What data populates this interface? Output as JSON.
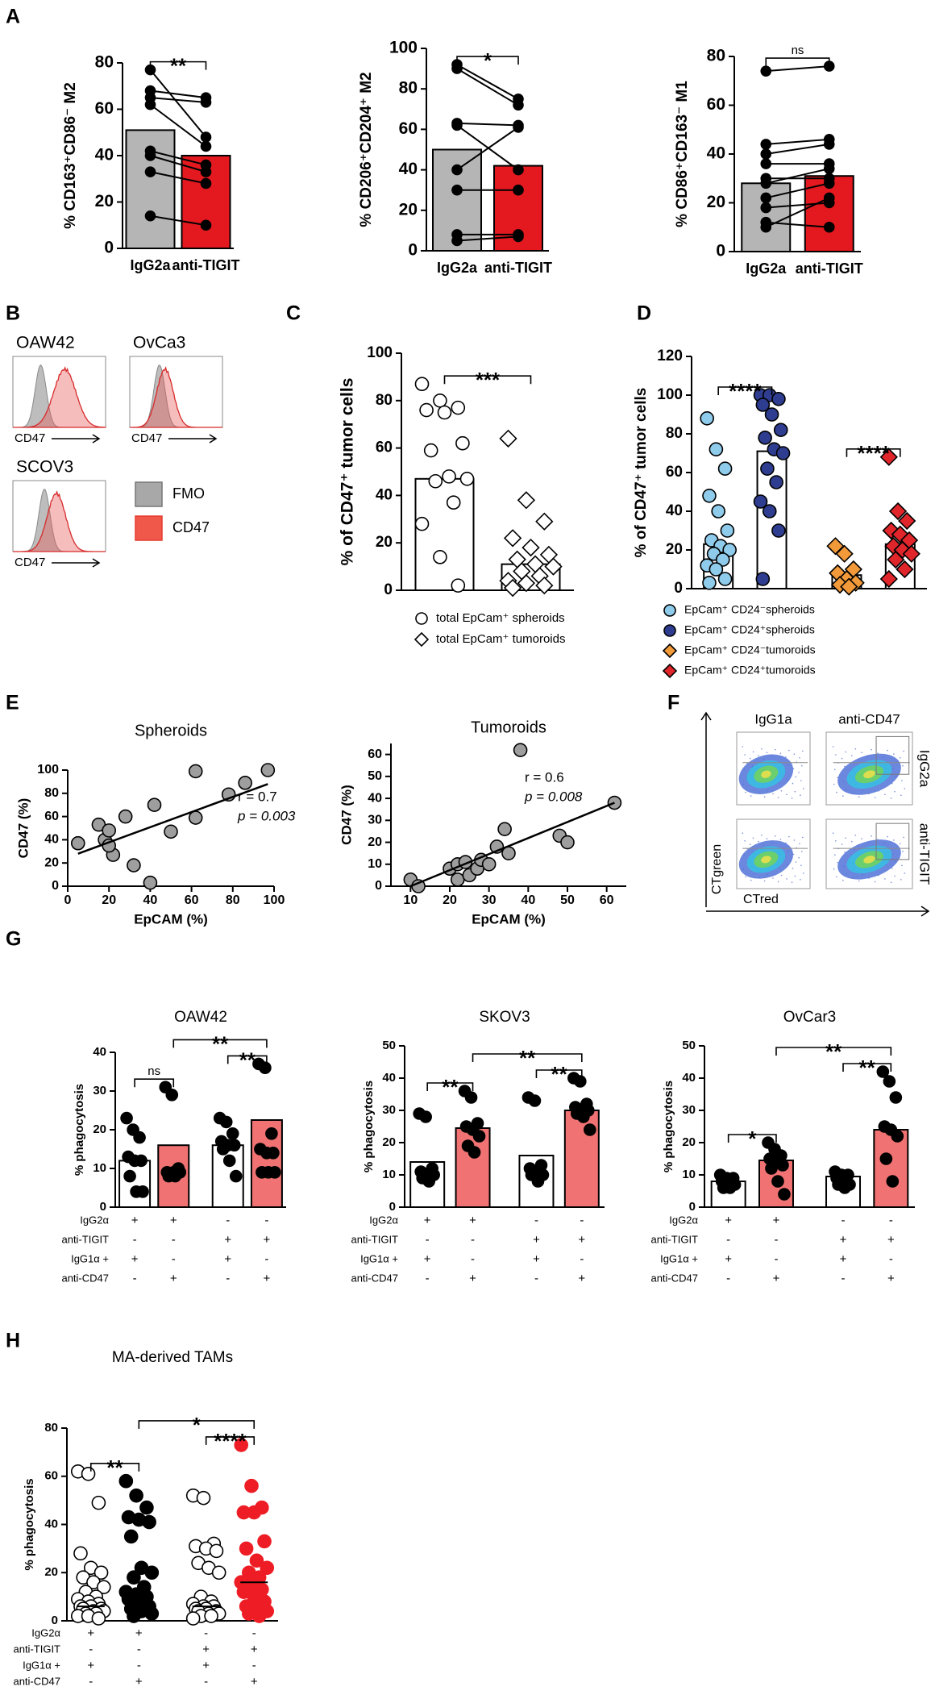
{
  "panel_labels": [
    "A",
    "B",
    "C",
    "D",
    "E",
    "F",
    "G",
    "H"
  ],
  "flow_histograms": {
    "titles": [
      "OAW42",
      "OvCa3",
      "SCOV3"
    ],
    "x_label": "CD47",
    "legend": [
      "FMO",
      "CD47"
    ]
  },
  "flow_plots": {
    "columns": [
      "IgG1a",
      "anti-CD47"
    ],
    "rows": [
      "IgG2a",
      "anti-TIGIT"
    ],
    "x_label": "CTred",
    "y_label": "CTgreen"
  },
  "chart_data": [
    {
      "type": "bar",
      "y_label": "% CD163⁺CD86⁻ M2",
      "ylim": [
        0,
        80
      ],
      "yticks": [
        0,
        20,
        40,
        60,
        80
      ],
      "paired": true,
      "series": [
        {
          "name": "IgG2a",
          "bar": 51,
          "bar_color": "#b5b5b5",
          "point_color": "#000000",
          "marker": "circle",
          "values": [
            77,
            68,
            65,
            62,
            42,
            40,
            33,
            14
          ]
        },
        {
          "name": "anti-TIGIT",
          "bar": 40,
          "bar_color": "#e3191f",
          "point_color": "#000000",
          "marker": "circle",
          "values": [
            48,
            65,
            63,
            44,
            36,
            33,
            28,
            10
          ]
        }
      ],
      "significance": [
        {
          "from": 0,
          "to": 1,
          "label": "**"
        }
      ]
    },
    {
      "type": "bar",
      "y_label": "% CD206⁺CD204⁺ M2",
      "ylim": [
        0,
        100
      ],
      "yticks": [
        0,
        20,
        40,
        60,
        80,
        100
      ],
      "paired": true,
      "series": [
        {
          "name": "IgG2a",
          "bar": 50,
          "bar_color": "#b5b5b5",
          "point_color": "#000000",
          "marker": "circle",
          "values": [
            92,
            90,
            63,
            62,
            40,
            30,
            8,
            5
          ]
        },
        {
          "name": "anti-TIGIT",
          "bar": 42,
          "bar_color": "#e3191f",
          "point_color": "#000000",
          "marker": "circle",
          "values": [
            75,
            72,
            62,
            40,
            61,
            30,
            8,
            7
          ]
        }
      ],
      "significance": [
        {
          "from": 0,
          "to": 1,
          "label": "*"
        }
      ]
    },
    {
      "type": "bar",
      "y_label": "% CD86⁺CD163⁻ M1",
      "ylim": [
        0,
        80
      ],
      "yticks": [
        0,
        20,
        40,
        60,
        80
      ],
      "paired": true,
      "series": [
        {
          "name": "IgG2a",
          "bar": 28,
          "bar_color": "#b5b5b5",
          "point_color": "#000000",
          "marker": "circle",
          "values": [
            74,
            44,
            40,
            36,
            30,
            28,
            22,
            18,
            12,
            10
          ]
        },
        {
          "name": "anti-TIGIT",
          "bar": 31,
          "bar_color": "#e3191f",
          "point_color": "#000000",
          "marker": "circle",
          "values": [
            76,
            46,
            44,
            36,
            30,
            34,
            28,
            20,
            10,
            22
          ]
        }
      ],
      "significance": [
        {
          "from": 0,
          "to": 1,
          "label": "ns"
        }
      ]
    },
    {
      "type": "bar",
      "y_label": "% of CD47⁺ tumor cells",
      "ylim": [
        0,
        100
      ],
      "yticks": [
        0,
        20,
        40,
        60,
        80,
        100
      ],
      "legend": true,
      "series": [
        {
          "name": "total EpCam⁺ spheroids",
          "bar": 47,
          "bar_color": "#ffffff",
          "point_color": "#ffffff",
          "marker": "circle",
          "values": [
            87,
            80,
            77,
            76,
            75,
            62,
            59,
            48,
            47,
            46,
            37,
            28,
            14,
            2
          ]
        },
        {
          "name": "total EpCam⁺ tumoroids",
          "bar": 11,
          "bar_color": "#ffffff",
          "point_color": "#ffffff",
          "marker": "diamond",
          "values": [
            64,
            38,
            29,
            22,
            18,
            15,
            13,
            11,
            10,
            8,
            6,
            4,
            3,
            2,
            1
          ]
        }
      ],
      "significance": [
        {
          "from": 0,
          "to": 1,
          "label": "***"
        }
      ]
    },
    {
      "type": "bar",
      "y_label": "% of CD47⁺ tumor cells",
      "ylim": [
        0,
        120
      ],
      "yticks": [
        0,
        20,
        40,
        60,
        80,
        100,
        120
      ],
      "legend": true,
      "series": [
        {
          "name": "EpCam⁺ CD24⁻spheroids",
          "bar": 23,
          "bar_color": "#ffffff",
          "point_color": "#8fcbea",
          "marker": "circle",
          "values": [
            88,
            72,
            62,
            48,
            40,
            30,
            25,
            22,
            20,
            18,
            15,
            12,
            10,
            5,
            3
          ]
        },
        {
          "name": "EpCam⁺ CD24⁺spheroids",
          "bar": 71,
          "bar_color": "#ffffff",
          "point_color": "#2e3d8f",
          "marker": "circle",
          "values": [
            100,
            100,
            98,
            95,
            90,
            82,
            78,
            72,
            70,
            62,
            55,
            45,
            40,
            30,
            5
          ]
        },
        {
          "name": "EpCam⁺ CD24⁻tumoroids",
          "bar": 7,
          "bar_color": "#ffffff",
          "point_color": "#f29a3a",
          "marker": "diamond",
          "values": [
            22,
            18,
            10,
            8,
            5,
            3,
            2,
            1
          ]
        },
        {
          "name": "EpCam⁺ CD24⁺tumoroids",
          "bar": 23,
          "bar_color": "#ffffff",
          "point_color": "#e0262b",
          "marker": "diamond",
          "values": [
            68,
            40,
            35,
            30,
            28,
            25,
            22,
            20,
            18,
            15,
            10,
            5
          ]
        }
      ],
      "significance": [
        {
          "from": 0,
          "to": 1,
          "label": "****"
        },
        {
          "from": 2,
          "to": 3,
          "label": "****"
        }
      ]
    },
    {
      "type": "scatter",
      "title": "Spheroids",
      "x_label": "EpCAM (%)",
      "y_label": "CD47 (%)",
      "color": "#9e9e9e",
      "xlim": [
        0,
        100
      ],
      "xticks": [
        0,
        20,
        40,
        60,
        80,
        100
      ],
      "ylim": [
        0,
        100
      ],
      "yticks": [
        0,
        20,
        40,
        60,
        80,
        100
      ],
      "x": [
        5,
        15,
        18,
        20,
        22,
        20,
        28,
        32,
        40,
        42,
        50,
        62,
        62,
        78,
        86,
        97
      ],
      "values": [
        37,
        53,
        40,
        48,
        27,
        35,
        60,
        18,
        3,
        70,
        47,
        99,
        59,
        79,
        89,
        100
      ],
      "fit": {
        "x": [
          5,
          97
        ],
        "y": [
          28,
          88
        ]
      },
      "annotations": [
        "r = 0.7",
        "p = 0.003"
      ]
    },
    {
      "type": "scatter",
      "title": "Tumoroids",
      "x_label": "EpCAM (%)",
      "y_label": "CD47 (%)",
      "color": "#9e9e9e",
      "xlim": [
        5,
        65
      ],
      "xticks": [
        10,
        20,
        30,
        40,
        50,
        60
      ],
      "ylim": [
        0,
        65
      ],
      "yticks": [
        0,
        10,
        20,
        30,
        40,
        50,
        60
      ],
      "x": [
        10,
        12,
        20,
        22,
        22,
        24,
        25,
        27,
        28,
        30,
        32,
        34,
        35,
        38,
        48,
        50,
        62
      ],
      "values": [
        3,
        0,
        8,
        10,
        3,
        11,
        5,
        8,
        12,
        10,
        18,
        26,
        15,
        62,
        23,
        20,
        38
      ],
      "fit": {
        "x": [
          10,
          62
        ],
        "y": [
          0,
          38
        ]
      },
      "annotations": [
        "r = 0.6",
        "p = 0.008"
      ]
    },
    {
      "type": "bar",
      "title": "OAW42",
      "y_label": "% phagocytosis",
      "ylim": [
        0,
        40
      ],
      "yticks": [
        0,
        10,
        20,
        30,
        40
      ],
      "series": [
        {
          "bar": 12,
          "bar_color": "#ffffff",
          "point_color": "#000000",
          "marker": "circle",
          "values": [
            23,
            20,
            18,
            13,
            12,
            12,
            8,
            4,
            4
          ]
        },
        {
          "bar": 16,
          "bar_color": "#f07272",
          "point_color": "#000000",
          "marker": "circle",
          "values": [
            31,
            29,
            10,
            9,
            9,
            9,
            8,
            8
          ]
        },
        {
          "bar": 16,
          "bar_color": "#ffffff",
          "point_color": "#000000",
          "marker": "circle",
          "values": [
            23,
            22,
            19,
            17,
            16,
            16,
            15,
            12,
            8
          ]
        },
        {
          "bar": 22.5,
          "bar_color": "#f07272",
          "point_color": "#000000",
          "marker": "circle",
          "values": [
            37,
            36,
            19,
            15,
            14,
            14,
            9,
            9,
            9
          ]
        }
      ],
      "significance": [
        {
          "from": 0,
          "to": 1,
          "label": "ns"
        },
        {
          "from": 2,
          "to": 3,
          "label": "**"
        },
        {
          "from": 1,
          "to": 3,
          "label": "**"
        }
      ],
      "condition_rows": [
        {
          "name": "IgG2α",
          "signs": [
            "+",
            "+",
            "-",
            "-"
          ]
        },
        {
          "name": "anti-TIGIT",
          "signs": [
            "-",
            "-",
            "+",
            "+"
          ]
        },
        {
          "name": "IgG1α +",
          "signs": [
            "+",
            "-",
            "+",
            "-"
          ]
        },
        {
          "name": "anti-CD47",
          "signs": [
            "-",
            "+",
            "-",
            "+"
          ]
        }
      ]
    },
    {
      "type": "bar",
      "title": "SKOV3",
      "y_label": "% phagocytosis",
      "ylim": [
        0,
        50
      ],
      "yticks": [
        0,
        10,
        20,
        30,
        40,
        50
      ],
      "series": [
        {
          "bar": 14,
          "bar_color": "#ffffff",
          "point_color": "#000000",
          "marker": "circle",
          "values": [
            29,
            28,
            12,
            11,
            10,
            10,
            9,
            8
          ]
        },
        {
          "bar": 24.5,
          "bar_color": "#f07272",
          "point_color": "#000000",
          "marker": "circle",
          "values": [
            36,
            34,
            26,
            25,
            24,
            22,
            19,
            17
          ]
        },
        {
          "bar": 16,
          "bar_color": "#ffffff",
          "point_color": "#000000",
          "marker": "circle",
          "values": [
            34,
            33,
            13,
            12,
            11,
            10,
            10,
            8
          ]
        },
        {
          "bar": 30,
          "bar_color": "#f07272",
          "point_color": "#000000",
          "marker": "circle",
          "values": [
            40,
            39,
            32,
            31,
            30,
            30,
            29,
            28,
            24
          ]
        }
      ],
      "significance": [
        {
          "from": 0,
          "to": 1,
          "label": "**"
        },
        {
          "from": 2,
          "to": 3,
          "label": "**"
        },
        {
          "from": 1,
          "to": 3,
          "label": "**"
        }
      ],
      "condition_rows": [
        {
          "name": "IgG2α",
          "signs": [
            "+",
            "+",
            "-",
            "-"
          ]
        },
        {
          "name": "anti-TIGIT",
          "signs": [
            "-",
            "-",
            "+",
            "+"
          ]
        },
        {
          "name": "IgG1α +",
          "signs": [
            "+",
            "-",
            "+",
            "-"
          ]
        },
        {
          "name": "anti-CD47",
          "signs": [
            "-",
            "+",
            "-",
            "+"
          ]
        }
      ]
    },
    {
      "type": "bar",
      "title": "OvCar3",
      "y_label": "% phagocytosis",
      "ylim": [
        0,
        50
      ],
      "yticks": [
        0,
        10,
        20,
        30,
        40,
        50
      ],
      "series": [
        {
          "bar": 8,
          "bar_color": "#ffffff",
          "point_color": "#000000",
          "marker": "circle",
          "values": [
            10,
            9,
            9,
            8,
            8,
            7,
            6,
            6
          ]
        },
        {
          "bar": 14.5,
          "bar_color": "#f07272",
          "point_color": "#000000",
          "marker": "circle",
          "values": [
            20,
            18,
            16,
            15,
            14,
            13,
            12,
            8,
            4
          ]
        },
        {
          "bar": 9.5,
          "bar_color": "#ffffff",
          "point_color": "#000000",
          "marker": "circle",
          "values": [
            11,
            10,
            10,
            9,
            9,
            7,
            7,
            6
          ]
        },
        {
          "bar": 24,
          "bar_color": "#f07272",
          "point_color": "#000000",
          "marker": "circle",
          "values": [
            42,
            39,
            34,
            25,
            24,
            22,
            15,
            8
          ]
        }
      ],
      "significance": [
        {
          "from": 0,
          "to": 1,
          "label": "*"
        },
        {
          "from": 2,
          "to": 3,
          "label": "**"
        },
        {
          "from": 1,
          "to": 3,
          "label": "**"
        }
      ],
      "condition_rows": [
        {
          "name": "IgG2α",
          "signs": [
            "+",
            "+",
            "-",
            "-"
          ]
        },
        {
          "name": "anti-TIGIT",
          "signs": [
            "-",
            "-",
            "+",
            "+"
          ]
        },
        {
          "name": "IgG1α +",
          "signs": [
            "+",
            "-",
            "+",
            "-"
          ]
        },
        {
          "name": "anti-CD47",
          "signs": [
            "-",
            "+",
            "-",
            "+"
          ]
        }
      ]
    },
    {
      "type": "dot",
      "title": "MA-derived TAMs",
      "y_label": "% phagocytosis",
      "ylim": [
        0,
        80
      ],
      "yticks": [
        0,
        20,
        40,
        60,
        80
      ],
      "series": [
        {
          "median": 6,
          "point_color": "#ffffff",
          "marker": "circle",
          "values": [
            62,
            61,
            49,
            28,
            22,
            20,
            18,
            16,
            14,
            12,
            10,
            9,
            8,
            7,
            6,
            6,
            5,
            5,
            4,
            4,
            3,
            3,
            2,
            2,
            1
          ]
        },
        {
          "median": 11,
          "point_color": "#000000",
          "marker": "circle",
          "values": [
            58,
            52,
            47,
            43,
            42,
            41,
            35,
            22,
            20,
            18,
            14,
            12,
            11,
            10,
            9,
            8,
            6,
            5,
            4,
            3,
            2
          ]
        },
        {
          "median": 6,
          "point_color": "#ffffff",
          "marker": "circle",
          "values": [
            52,
            51,
            32,
            31,
            30,
            29,
            24,
            22,
            20,
            10,
            8,
            7,
            6,
            6,
            5,
            5,
            4,
            4,
            3,
            3,
            2,
            2,
            1
          ]
        },
        {
          "median": 16,
          "point_color": "#ee1c24",
          "marker": "circle",
          "values": [
            73,
            56,
            47,
            45,
            45,
            33,
            30,
            25,
            22,
            20,
            18,
            16,
            15,
            13,
            12,
            10,
            8,
            6,
            5,
            4,
            3,
            2
          ]
        }
      ],
      "significance": [
        {
          "from": 0,
          "to": 1,
          "label": "**"
        },
        {
          "from": 2,
          "to": 3,
          "label": "****"
        },
        {
          "from": 1,
          "to": 3,
          "label": "*"
        }
      ],
      "condition_rows": [
        {
          "name": "IgG2α",
          "signs": [
            "+",
            "+",
            "-",
            "-"
          ]
        },
        {
          "name": "anti-TIGIT",
          "signs": [
            "-",
            "-",
            "+",
            "+"
          ]
        },
        {
          "name": "IgG1α +",
          "signs": [
            "+",
            "-",
            "+",
            "-"
          ]
        },
        {
          "name": "anti-CD47",
          "signs": [
            "-",
            "+",
            "-",
            "+"
          ]
        }
      ]
    }
  ]
}
